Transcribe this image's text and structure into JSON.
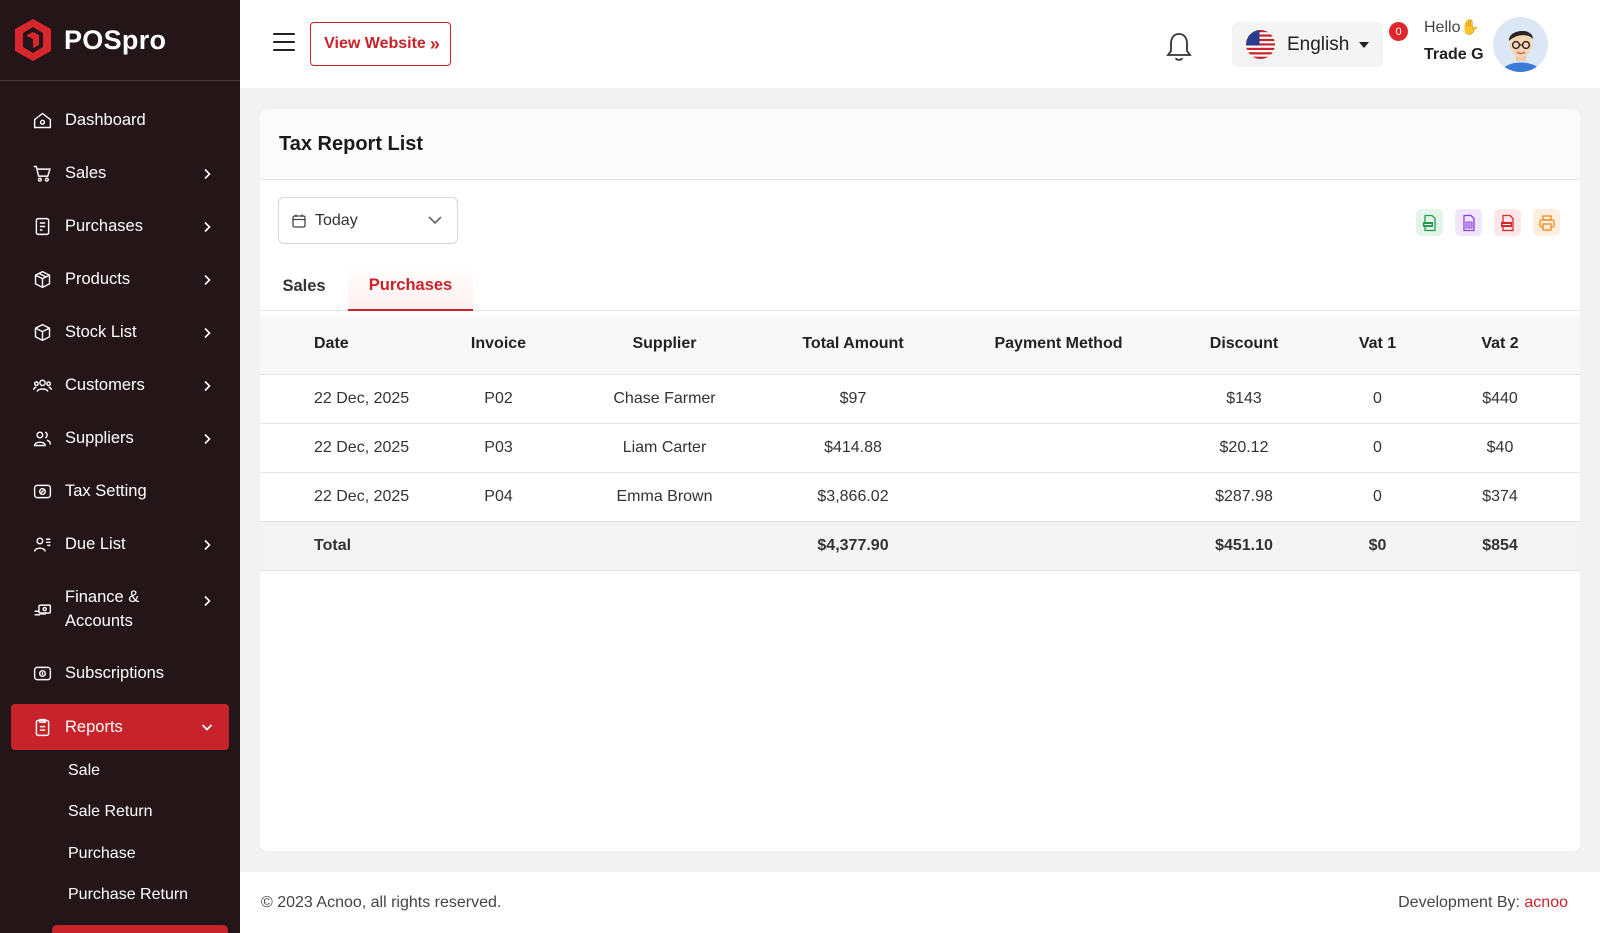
{
  "app": {
    "name": "POSpro"
  },
  "sidebar": {
    "items": [
      {
        "label": "Dashboard",
        "icon": "home-icon",
        "has_children": false
      },
      {
        "label": "Sales",
        "icon": "cart-icon",
        "has_children": true
      },
      {
        "label": "Purchases",
        "icon": "receipt-icon",
        "has_children": true
      },
      {
        "label": "Products",
        "icon": "box-icon",
        "has_children": true
      },
      {
        "label": "Stock List",
        "icon": "cube-icon",
        "has_children": true
      },
      {
        "label": "Customers",
        "icon": "users-icon",
        "has_children": true
      },
      {
        "label": "Suppliers",
        "icon": "user-group-icon",
        "has_children": true
      },
      {
        "label": "Tax Setting",
        "icon": "tax-icon",
        "has_children": false
      },
      {
        "label": "Due List",
        "icon": "user-list-icon",
        "has_children": true
      },
      {
        "label": "Finance & Accounts",
        "icon": "money-hand-icon",
        "has_children": true
      },
      {
        "label": "Subscriptions",
        "icon": "subscription-icon",
        "has_children": false
      },
      {
        "label": "Reports",
        "icon": "report-icon",
        "has_children": true,
        "active": true
      }
    ],
    "report_subitems": [
      "Sale",
      "Sale Return",
      "Purchase",
      "Purchase Return"
    ]
  },
  "topbar": {
    "view_website": "View Website",
    "language": "English",
    "notification_count": "0",
    "greeting": "Hello",
    "user_name": "Trade G"
  },
  "page": {
    "title": "Tax Report List",
    "date_filter": "Today",
    "export_buttons": [
      "csv-export-icon",
      "excel-export-icon",
      "pdf-export-icon",
      "print-icon"
    ],
    "tabs": [
      {
        "label": "Sales",
        "active": false
      },
      {
        "label": "Purchases",
        "active": true
      }
    ]
  },
  "table": {
    "headers": [
      "Date",
      "Invoice",
      "Supplier",
      "Total Amount",
      "Payment Method",
      "Discount",
      "Vat 1",
      "Vat 2"
    ],
    "rows": [
      [
        "22 Dec, 2025",
        "P02",
        "Chase Farmer",
        "$97",
        "",
        "$143",
        "0",
        "$440"
      ],
      [
        "22 Dec, 2025",
        "P03",
        "Liam Carter",
        "$414.88",
        "",
        "$20.12",
        "0",
        "$40"
      ],
      [
        "22 Dec, 2025",
        "P04",
        "Emma Brown",
        "$3,866.02",
        "",
        "$287.98",
        "0",
        "$374"
      ]
    ],
    "total": [
      "Total",
      "",
      "",
      "$4,377.90",
      "",
      "$451.10",
      "$0",
      "$854"
    ]
  },
  "footer": {
    "copyright": "© 2023 Acnoo, all rights reserved.",
    "dev_by": "Development By: ",
    "dev_name": "acnoo"
  },
  "colors": {
    "accent": "#c8232a",
    "sidebar_bg": "#241518"
  }
}
